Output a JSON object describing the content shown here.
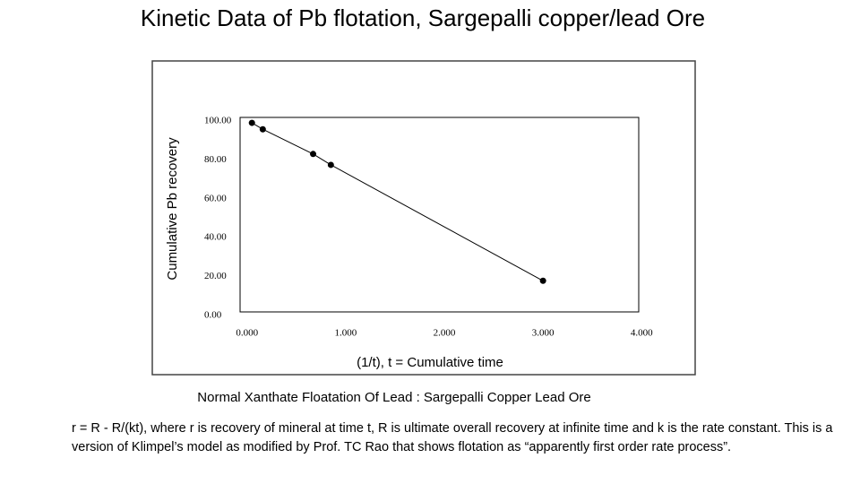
{
  "chart_data": {
    "type": "scatter",
    "title": "Kinetic Data of Pb flotation, Sargepalli copper/lead Ore",
    "ylabel": "Cumulative Pb recovery",
    "xlabel": "(1/t), t = Cumulative time",
    "caption": "Normal Xanthate Floatation Of Lead : Sargepalli Copper Lead Ore",
    "note": "r =  R  - R/(kt), where r is recovery of mineral at time t, R is ultimate overall recovery at infinite time and k is the rate constant. This is a version of Klimpel’s model  as modified by Prof. TC Rao that shows  flotation as “apparently first order rate process”.",
    "x": [
      0.05,
      0.16,
      0.67,
      0.85,
      3.0
    ],
    "series": [
      {
        "color": "#000000",
        "values": [
          97.2,
          93.9,
          81.2,
          75.6,
          16.0
        ]
      }
    ],
    "connect_points": true,
    "xlim": [
      -0.07,
      3.97
    ],
    "ylim": [
      0,
      100
    ],
    "xticks": [
      {
        "value": 0,
        "label": "0.000"
      },
      {
        "value": 1,
        "label": "1.000"
      },
      {
        "value": 2,
        "label": "2.000"
      },
      {
        "value": 3,
        "label": "3.000"
      },
      {
        "value": 4,
        "label": "4.000"
      }
    ],
    "yticks": [
      {
        "value": 0,
        "label": "0.00"
      },
      {
        "value": 20,
        "label": "20.00"
      },
      {
        "value": 40,
        "label": "40.00"
      },
      {
        "value": 60,
        "label": "60.00"
      },
      {
        "value": 80,
        "label": "80.00"
      },
      {
        "value": 100,
        "label": "100.00"
      }
    ]
  }
}
